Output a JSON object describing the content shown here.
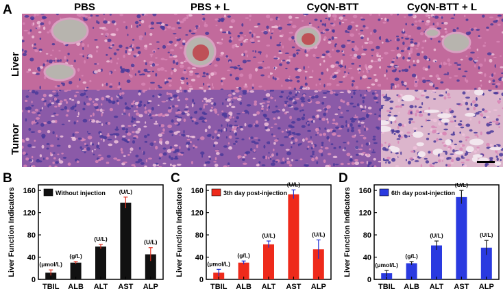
{
  "figure": {
    "panel_a_letter": "A",
    "columns": [
      "PBS",
      "PBS + L",
      "CyQN-BTT",
      "CyQN-BTT + L"
    ],
    "rows": [
      "Liver",
      "Tumor"
    ],
    "colors": {
      "tissue_pink": "#c85a8c",
      "nuclei": "#4a3a9a",
      "lumen": "#b7b4ae",
      "blood": "#c0303a"
    }
  },
  "chart_data": [
    {
      "panel": "B",
      "type": "bar",
      "legend": "Without injection",
      "color": "#111111",
      "categories": [
        "TBIL",
        "ALB",
        "ALT",
        "AST",
        "ALP"
      ],
      "units": [
        "(μmol/L)",
        "(g/L)",
        "(U/L)",
        "(U/L)",
        "(U/L)"
      ],
      "values": [
        12,
        30,
        59,
        138,
        45
      ],
      "errors": [
        5,
        2,
        4,
        10,
        12
      ],
      "ylabel": "Liver Function Indicators",
      "ylim": [
        0,
        170
      ],
      "yticks": [
        0,
        40,
        80,
        120,
        160
      ]
    },
    {
      "panel": "C",
      "type": "bar",
      "legend": "3th day post-injection",
      "color": "#ee2a1b",
      "categories": [
        "TBIL",
        "ALB",
        "ALT",
        "AST",
        "ALP"
      ],
      "units": [
        "(μmol/L)",
        "(g/L)",
        "(U/L)",
        "(U/L)",
        "(U/L)"
      ],
      "values": [
        12,
        30,
        63,
        153,
        54
      ],
      "errors": [
        6,
        3,
        6,
        8,
        17
      ],
      "ylabel": "Liver Function Indicators",
      "ylim": [
        0,
        170
      ],
      "yticks": [
        0,
        40,
        80,
        120,
        160
      ]
    },
    {
      "panel": "D",
      "type": "bar",
      "legend": "6th day post-injection",
      "color": "#2a3ae0",
      "categories": [
        "TBIL",
        "ALB",
        "ALT",
        "AST",
        "ALP"
      ],
      "units": [
        "(μmol/L)",
        "(g/L)",
        "(U/L)",
        "(U/L)",
        "(U/L)"
      ],
      "values": [
        11,
        29,
        61,
        148,
        57
      ],
      "errors": [
        5,
        3,
        8,
        12,
        13
      ],
      "ylabel": "Liver Function Indicators",
      "ylim": [
        0,
        170
      ],
      "yticks": [
        0,
        40,
        80,
        120,
        160
      ]
    }
  ]
}
